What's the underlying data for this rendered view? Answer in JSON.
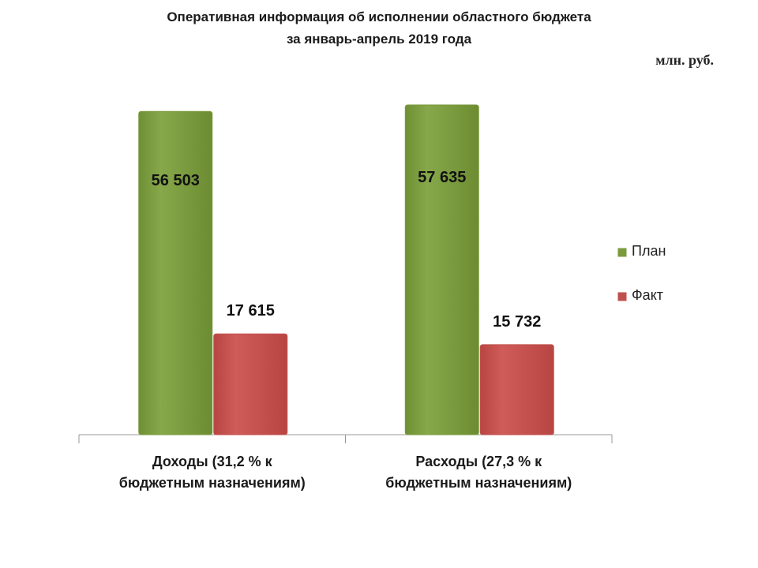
{
  "chart_data": {
    "type": "bar",
    "title": [
      "Оперативная информация об исполнении областного бюджета",
      "за январь-апрель 2019 года"
    ],
    "unit": "млн. руб.",
    "categories": [
      "Доходы (31,2 % к бюджетным назначениям)",
      "Расходы (27,3 % к бюджетным назначениям)"
    ],
    "series": [
      {
        "name": "План",
        "color": "#7a9a3c",
        "values": [
          56503,
          57635
        ],
        "value_labels": [
          "56 503",
          "57 635"
        ]
      },
      {
        "name": "Факт",
        "color": "#c0504d",
        "values": [
          17615,
          15732
        ],
        "value_labels": [
          "17 615",
          "15 732"
        ]
      }
    ],
    "legend": "right"
  }
}
